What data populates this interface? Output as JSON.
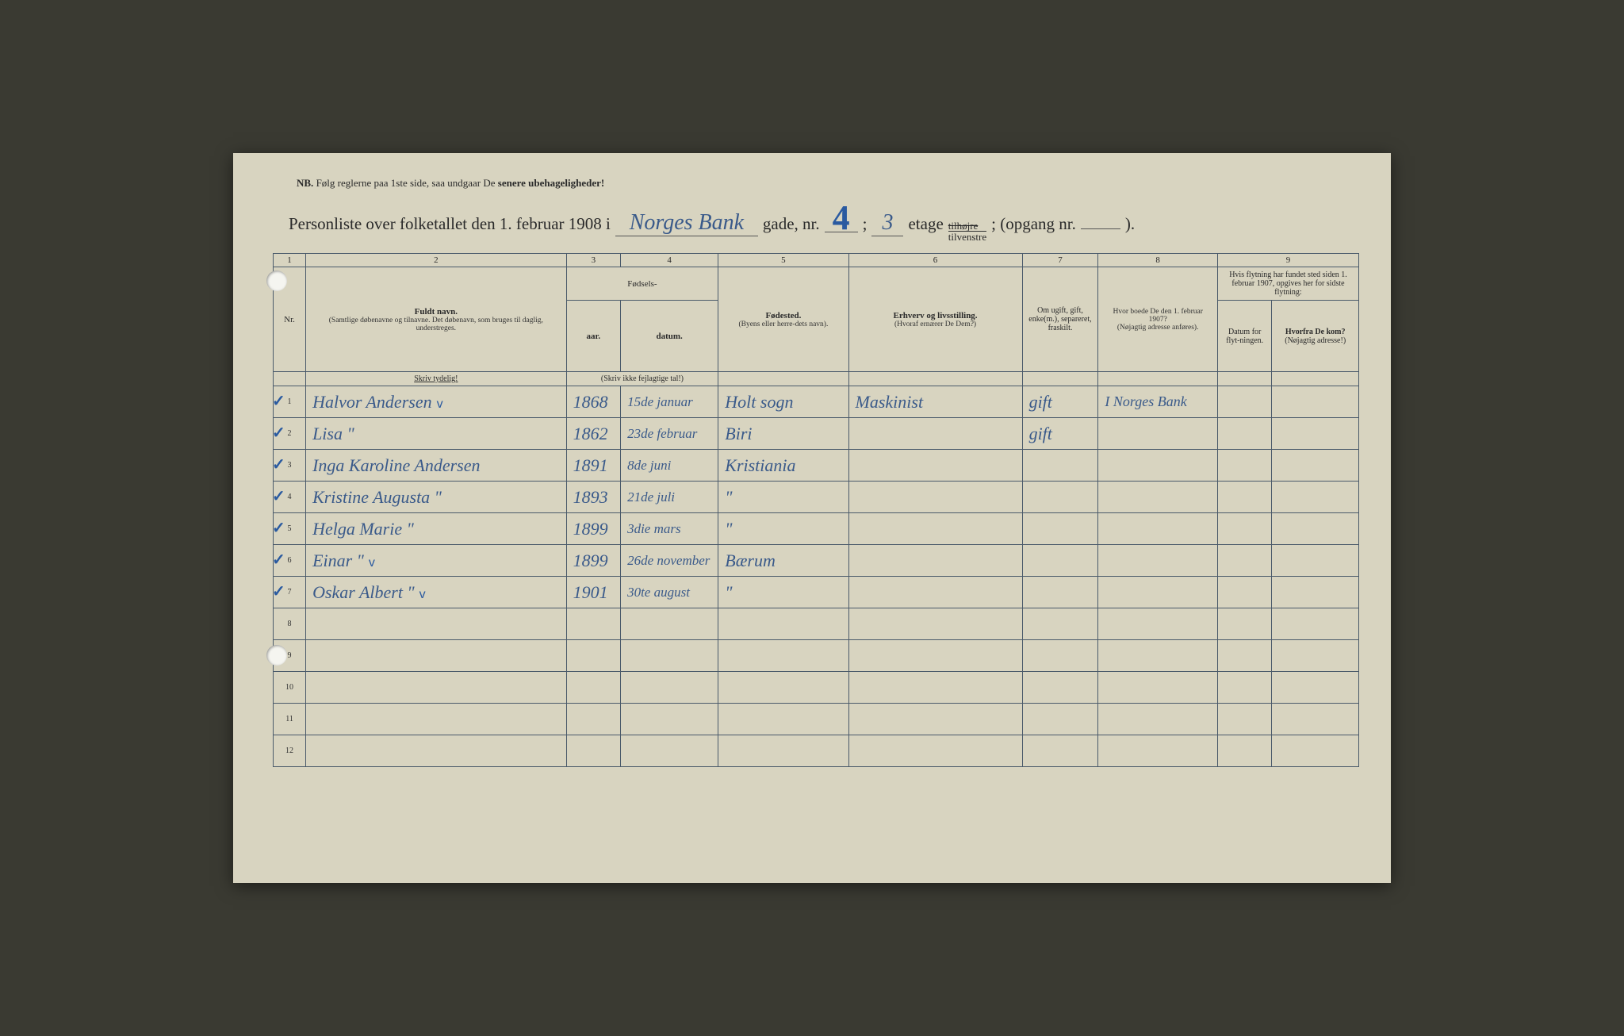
{
  "nb": {
    "prefix": "NB.",
    "text1": "Følg reglerne paa 1ste side, saa undgaar De ",
    "text2": "senere ubehageligheder!"
  },
  "title": {
    "t1": "Personliste over folketallet den 1. februar 1908 i",
    "street": "Norges Bank",
    "t2": "gade, nr.",
    "house_nr": "4",
    "t3": ";",
    "floor": "3",
    "t4": "etage",
    "side_strike": "tilhøjre",
    "side": "tilvenstre",
    "t5": "; (opgang nr.",
    "entrance": "",
    "t6": ")."
  },
  "columns": {
    "c1": "1",
    "c2": "2",
    "c3": "3",
    "c4": "4",
    "c5": "5",
    "c6": "6",
    "c7": "7",
    "c8": "8",
    "c9": "9"
  },
  "headers": {
    "nr": "Nr.",
    "name_main": "Fuldt navn.",
    "name_sub": "(Samtlige døbenavne og tilnavne. Det døbenavn, som bruges til daglig, understreges.",
    "name_note": "Skriv tydelig!",
    "birth": "Fødsels-",
    "year": "aar.",
    "date": "datum.",
    "birth_note": "(Skriv ikke fejlagtige tal!)",
    "birthplace": "Fødested.",
    "birthplace_sub": "(Byens eller herre-dets navn).",
    "occupation": "Erhverv og livsstilling.",
    "occupation_sub": "(Hvoraf ernærer De Dem?)",
    "marital": "Om ugift, gift, enke(m.), separeret, fraskilt.",
    "prev_addr": "Hvor boede De den 1. februar 1907?",
    "prev_addr_sub": "(Nøjagtig adresse anføres).",
    "move_main": "Hvis flytning har fundet sted siden 1. februar 1907, opgives her for sidste flytning:",
    "move_date": "Datum for flyt-ningen.",
    "move_from": "Hvorfra De kom?",
    "move_from_sub": "(Nøjagtig adresse!)"
  },
  "rows": [
    {
      "n": "1",
      "name": "Halvor Andersen",
      "vmark": "v",
      "year": "1868",
      "date": "15de januar",
      "place": "Holt sogn",
      "occ": "Maskinist",
      "mar": "gift",
      "prev": "I Norges Bank",
      "mdate": "",
      "mfrom": ""
    },
    {
      "n": "2",
      "name": "Lisa       \"",
      "vmark": "",
      "year": "1862",
      "date": "23de februar",
      "place": "Biri",
      "occ": "",
      "mar": "gift",
      "prev": "",
      "mdate": "",
      "mfrom": ""
    },
    {
      "n": "3",
      "name": "Inga Karoline Andersen",
      "vmark": "",
      "year": "1891",
      "date": "8de juni",
      "place": "Kristiania",
      "occ": "",
      "mar": "",
      "prev": "",
      "mdate": "",
      "mfrom": ""
    },
    {
      "n": "4",
      "name": "Kristine Augusta   \"",
      "vmark": "",
      "year": "1893",
      "date": "21de juli",
      "place": "\"",
      "occ": "",
      "mar": "",
      "prev": "",
      "mdate": "",
      "mfrom": ""
    },
    {
      "n": "5",
      "name": "Helga Marie     \"",
      "vmark": "",
      "year": "1899",
      "date": "3die mars",
      "place": "\"",
      "occ": "",
      "mar": "",
      "prev": "",
      "mdate": "",
      "mfrom": ""
    },
    {
      "n": "6",
      "name": "Einar          \"",
      "vmark": "v",
      "year": "1899",
      "date": "26de november",
      "place": "Bærum",
      "occ": "",
      "mar": "",
      "prev": "",
      "mdate": "",
      "mfrom": ""
    },
    {
      "n": "7",
      "name": "Oskar Albert    \"",
      "vmark": "v",
      "year": "1901",
      "date": "30te august",
      "place": "\"",
      "occ": "",
      "mar": "",
      "prev": "",
      "mdate": "",
      "mfrom": ""
    },
    {
      "n": "8",
      "name": "",
      "vmark": "",
      "year": "",
      "date": "",
      "place": "",
      "occ": "",
      "mar": "",
      "prev": "",
      "mdate": "",
      "mfrom": ""
    },
    {
      "n": "9",
      "name": "",
      "vmark": "",
      "year": "",
      "date": "",
      "place": "",
      "occ": "",
      "mar": "",
      "prev": "",
      "mdate": "",
      "mfrom": ""
    },
    {
      "n": "10",
      "name": "",
      "vmark": "",
      "year": "",
      "date": "",
      "place": "",
      "occ": "",
      "mar": "",
      "prev": "",
      "mdate": "",
      "mfrom": ""
    },
    {
      "n": "11",
      "name": "",
      "vmark": "",
      "year": "",
      "date": "",
      "place": "",
      "occ": "",
      "mar": "",
      "prev": "",
      "mdate": "",
      "mfrom": ""
    },
    {
      "n": "12",
      "name": "",
      "vmark": "",
      "year": "",
      "date": "",
      "place": "",
      "occ": "",
      "mar": "",
      "prev": "",
      "mdate": "",
      "mfrom": ""
    }
  ],
  "colors": {
    "paper": "#d8d4c0",
    "ink_print": "#2a2a2a",
    "ink_script": "#3a5a8a",
    "border": "#4a5a6a"
  },
  "col_widths_pct": [
    3,
    24,
    5,
    9,
    12,
    16,
    7,
    11,
    5,
    8
  ]
}
